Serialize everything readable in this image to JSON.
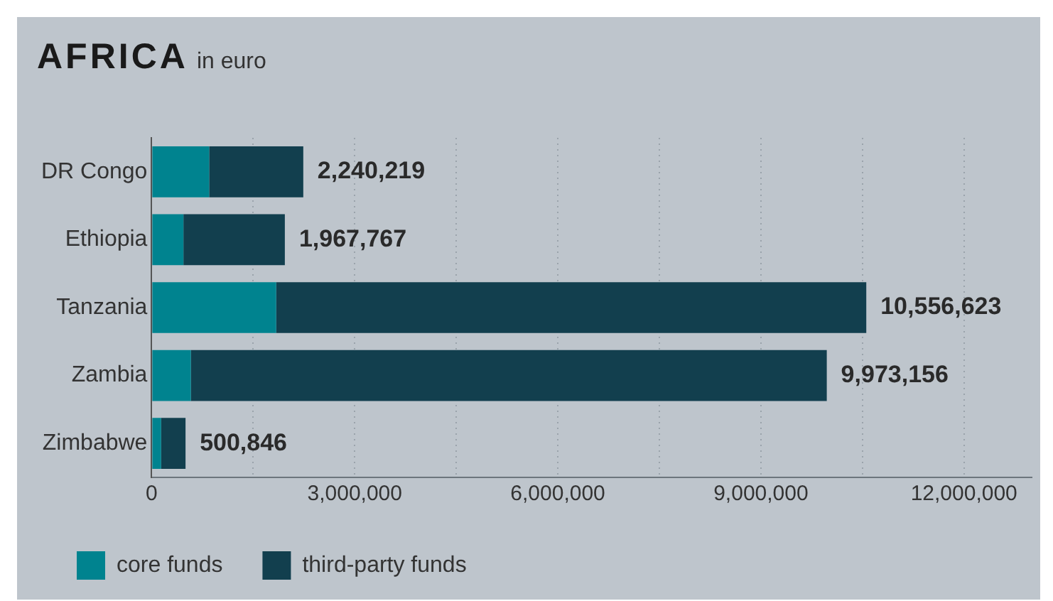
{
  "chart_data": {
    "type": "bar",
    "orientation": "horizontal",
    "stacked": true,
    "title": "AFRICA",
    "subtitle": "in euro",
    "categories": [
      "DR Congo",
      "Ethiopia",
      "Tanzania",
      "Zambia",
      "Zimbabwe"
    ],
    "series": [
      {
        "name": "core funds",
        "color": "#00838f",
        "values": [
          850000,
          470000,
          1840000,
          580000,
          140000
        ]
      },
      {
        "name": "third-party funds",
        "color": "#123f4e",
        "values": [
          1390219,
          1497767,
          8716623,
          9393156,
          360846
        ]
      }
    ],
    "totals": [
      "2,240,219",
      "1,967,767",
      "10,556,623",
      "9,973,156",
      "500,846"
    ],
    "xlim": [
      0,
      13000000
    ],
    "xticks": [
      0,
      {
        "value": 1500000,
        "label": null
      },
      {
        "value": 3000000,
        "label": "3,000,000"
      },
      {
        "value": 4500000,
        "label": null
      },
      {
        "value": 6000000,
        "label": "6,000,000"
      },
      {
        "value": 7500000,
        "label": null
      },
      {
        "value": 9000000,
        "label": "9,000,000"
      },
      {
        "value": 10500000,
        "label": null
      },
      {
        "value": 12000000,
        "label": "12,000,000"
      }
    ],
    "grid": "x",
    "legend": "bottom left"
  }
}
